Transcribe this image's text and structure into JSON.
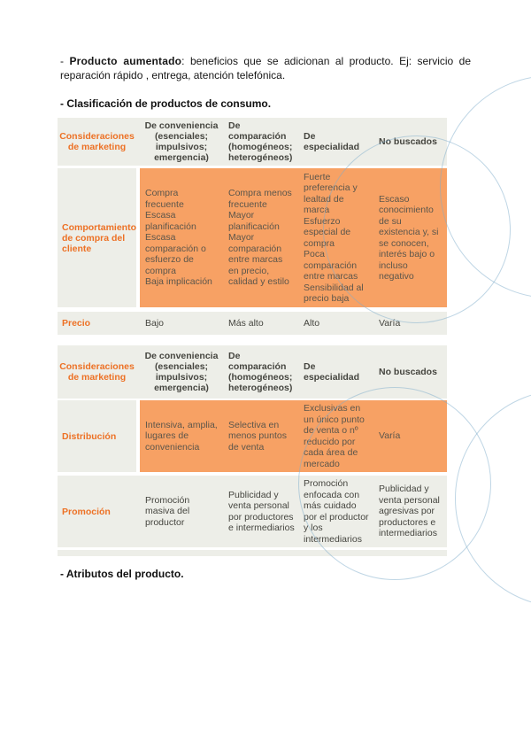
{
  "intro": {
    "prefix": "- ",
    "bold": "Producto aumentado",
    "rest": ": beneficios que se adicionan al producto. Ej: servicio de reparación rápido , entrega, atención telefónica."
  },
  "headings": {
    "clasificacion": "- Clasificación de productos de consumo.",
    "atributos": "- Atributos del producto."
  },
  "tables": {
    "headers": [
      "Consideraciones de marketing",
      "De conveniencia\n(esenciales;\nimpulsivos;\nemergencia)",
      "De comparación\n(homogéneos;\nheterogéneos)",
      "De especialidad",
      "No buscados"
    ],
    "t1": {
      "rows": [
        {
          "label": "Comportamiento de compra del cliente",
          "cells": [
            "Compra frecuente\nEscasa planificación\nEscasa comparación o esfuerzo de compra\nBaja implicación",
            "Compra menos frecuente\nMayor planificación\nMayor comparación entre marcas en precio, calidad y estilo",
            "Fuerte preferencia y lealtad de marca\nEsfuerzo especial de compra\nPoca comparación entre marcas\nSensibilidad al precio baja",
            "Escaso conocimiento de su existencia y, si se conocen, interés bajo o incluso negativo"
          ]
        },
        {
          "label": "Precio",
          "cells": [
            "Bajo",
            "Más alto",
            "Alto",
            "Varía"
          ]
        }
      ]
    },
    "t2": {
      "rows": [
        {
          "label": "Distribución",
          "cells": [
            "Intensiva, amplia, lugares de conveniencia",
            "Selectiva en menos puntos de venta",
            "Exclusivas en un único punto de venta o nº reducido por cada área de mercado",
            "Varía"
          ]
        },
        {
          "label": "Promoción",
          "cells": [
            "Promoción masiva del productor",
            "Publicidad y venta personal por productores e intermediarios",
            "Promoción enfocada con más cuidado por el productor y los intermediarios",
            "Publicidad y venta personal agresivas por productores e intermediarios"
          ]
        }
      ]
    }
  },
  "colors": {
    "accent_orange_text": "#ED7125",
    "orange_fill": "#F7A164",
    "table_gray": "#EDEEE8",
    "watermark_blue": "#80AECC"
  }
}
